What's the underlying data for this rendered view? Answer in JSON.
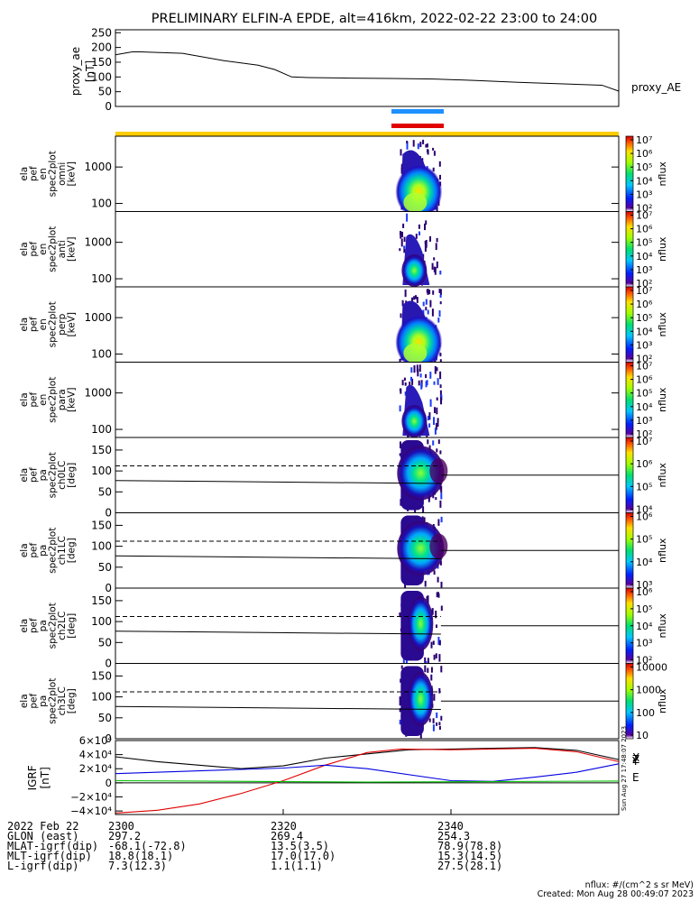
{
  "title": "PRELIMINARY ELFIN-A EPDE, alt=416km, 2022-02-22 23:00 to 24:00",
  "time_labels": [
    "2300",
    "2320",
    "2340"
  ],
  "colors": {
    "sci_blue": "#1e90ff",
    "sci_red": "#e00000",
    "orbit_yellow": "#ffcc00",
    "igrf_x": "#000000",
    "igrf_y": "#e00000",
    "igrf_z": "#0000e0",
    "igrf_e": "#00c000"
  },
  "ae": {
    "ylabel": "proxy_ae\n[nT]",
    "yticks": [
      "250",
      "200",
      "150",
      "100",
      "50",
      "0"
    ],
    "name": "proxy_AE"
  },
  "spec_panels": [
    {
      "ylabel": [
        "ela",
        "pef",
        "en",
        "spec2plot",
        "omni",
        "[keV]"
      ],
      "yticks": [
        "1000",
        "100"
      ],
      "cticks": [
        "10⁷",
        "10⁶",
        "10⁵",
        "10⁴",
        "10³",
        "10²"
      ],
      "clabel": "nflux"
    },
    {
      "ylabel": [
        "ela",
        "pef",
        "en",
        "spec2plot",
        "anti",
        "[keV]"
      ],
      "yticks": [
        "1000",
        "100"
      ],
      "cticks": [
        "10⁷",
        "10⁶",
        "10⁵",
        "10⁴",
        "10³",
        "10²"
      ],
      "clabel": "nflux"
    },
    {
      "ylabel": [
        "ela",
        "pef",
        "en",
        "spec2plot",
        "perp",
        "[keV]"
      ],
      "yticks": [
        "1000",
        "100"
      ],
      "cticks": [
        "10⁷",
        "10⁶",
        "10⁵",
        "10⁴",
        "10³",
        "10²"
      ],
      "clabel": "nflux"
    },
    {
      "ylabel": [
        "ela",
        "pef",
        "en",
        "spec2plot",
        "para",
        "[keV]"
      ],
      "yticks": [
        "1000",
        "100"
      ],
      "cticks": [
        "10⁷",
        "10⁶",
        "10⁵",
        "10⁴",
        "10³",
        "10²"
      ],
      "clabel": "nflux"
    }
  ],
  "pa_panels": [
    {
      "ylabel": [
        "ela",
        "pef",
        "pa",
        "spec2plot",
        "ch0LC",
        "[deg]"
      ],
      "yticks": [
        "150",
        "100",
        "50",
        "0"
      ],
      "cticks": [
        "10⁷",
        "10⁶",
        "10⁵",
        "10⁴"
      ],
      "clabel": "nflux"
    },
    {
      "ylabel": [
        "ela",
        "pef",
        "pa",
        "spec2plot",
        "ch1LC",
        "[deg]"
      ],
      "yticks": [
        "150",
        "100",
        "50",
        "0"
      ],
      "cticks": [
        "10⁶",
        "10⁵",
        "10⁴",
        "10³"
      ],
      "clabel": "nflux"
    },
    {
      "ylabel": [
        "ela",
        "pef",
        "pa",
        "spec2plot",
        "ch2LC",
        "[deg]"
      ],
      "yticks": [
        "150",
        "100",
        "50",
        "0"
      ],
      "cticks": [
        "10⁶",
        "10⁵",
        "10⁴",
        "10³",
        "10²"
      ],
      "clabel": "nflux"
    },
    {
      "ylabel": [
        "ela",
        "pef",
        "pa",
        "spec2plot",
        "ch3LC",
        "[deg]"
      ],
      "yticks": [
        "150",
        "100",
        "50",
        "0"
      ],
      "cticks": [
        "10000",
        "1000",
        "100",
        "10"
      ],
      "clabel": "nflux"
    }
  ],
  "igrf": {
    "ylabel": "IGRF\n[nT]",
    "yticks": [
      "6×10⁴",
      "4×10⁴",
      "2×10⁴",
      "0",
      "−2×10⁴",
      "−4×10⁴"
    ],
    "components": [
      "X",
      "Y",
      "Z",
      "E"
    ],
    "stamp": "Sun Aug 27 17:48:07 2023"
  },
  "footer": {
    "rows": [
      {
        "label": "2022 Feb 22",
        "v": [
          "2300",
          "2320",
          "2340"
        ]
      },
      {
        "label": "GLON (east)",
        "v": [
          "297.2",
          "269.4",
          "254.3"
        ]
      },
      {
        "label": "MLAT-igrf(dip)",
        "v": [
          "-68.1(-72.8)",
          "13.5(3.5)",
          "78.9(78.8)"
        ]
      },
      {
        "label": "MLT-igrf(dip)",
        "v": [
          "18.8(18.1)",
          "17.0(17.0)",
          "15.3(14.5)"
        ]
      },
      {
        "label": "L-igrf(dip)",
        "v": [
          "7.3(12.3)",
          "1.1(1.1)",
          "27.5(28.1)"
        ]
      }
    ],
    "units": "nflux: #/(cm^2 s sr MeV)",
    "created": "Created: Mon Aug 28 00:49:07 2023"
  },
  "chart_data": [
    {
      "type": "line",
      "title": "PRELIMINARY ELFIN-A EPDE, alt=416km, 2022-02-22 23:00 to 24:00",
      "series": [
        {
          "name": "proxy_AE",
          "x": [
            0,
            2,
            3,
            8,
            13,
            17,
            19,
            21,
            23,
            28,
            33,
            38,
            43,
            48,
            53,
            58,
            60
          ],
          "values": [
            175,
            185,
            185,
            180,
            155,
            140,
            125,
            100,
            98,
            96,
            95,
            93,
            88,
            82,
            77,
            72,
            52
          ]
        }
      ],
      "xlabel": "",
      "ylabel": "proxy_ae [nT]",
      "ylim": [
        0,
        260
      ],
      "xlim": [
        0,
        60
      ]
    },
    {
      "type": "heatmap",
      "panels": [
        "omni",
        "anti",
        "perp",
        "para"
      ],
      "ylabel": "[keV]",
      "yscale": "log",
      "ylim": [
        60,
        7000
      ],
      "xlim": [
        0,
        60
      ],
      "event_time_range": [
        33.8,
        38.8
      ]
    },
    {
      "type": "heatmap",
      "panels": [
        "ch0LC",
        "ch1LC",
        "ch2LC",
        "ch3LC"
      ],
      "ylabel": "[deg]",
      "ylim": [
        0,
        180
      ],
      "xlim": [
        0,
        60
      ],
      "event_time_range": [
        33.8,
        38.8
      ],
      "loss_cone_dashed": 112,
      "loss_cone_solid": 75
    },
    {
      "type": "line",
      "ylabel": "IGRF [nT]",
      "ylim": [
        -45000,
        60000
      ],
      "xlim": [
        0,
        60
      ],
      "series": [
        {
          "name": "X",
          "x": [
            0,
            5,
            15,
            20,
            25,
            35,
            45,
            50,
            55,
            60
          ],
          "values": [
            37000,
            30000,
            20000,
            24000,
            35000,
            47000,
            49000,
            50000,
            46000,
            33000
          ]
        },
        {
          "name": "Y",
          "x": [
            0,
            5,
            10,
            15,
            20,
            25,
            30,
            34,
            40,
            50,
            55,
            60
          ],
          "values": [
            -43000,
            -39000,
            -30000,
            -15000,
            3000,
            25000,
            43000,
            48000,
            47000,
            49000,
            44000,
            30000
          ]
        },
        {
          "name": "Z",
          "x": [
            0,
            10,
            20,
            25,
            30,
            40,
            45,
            50,
            55,
            60
          ],
          "values": [
            13000,
            17000,
            21000,
            25000,
            20000,
            3000,
            2000,
            8000,
            15000,
            27000
          ]
        },
        {
          "name": "E",
          "x": [
            0,
            30,
            60
          ],
          "values": [
            3000,
            1000,
            2500
          ]
        }
      ]
    }
  ]
}
